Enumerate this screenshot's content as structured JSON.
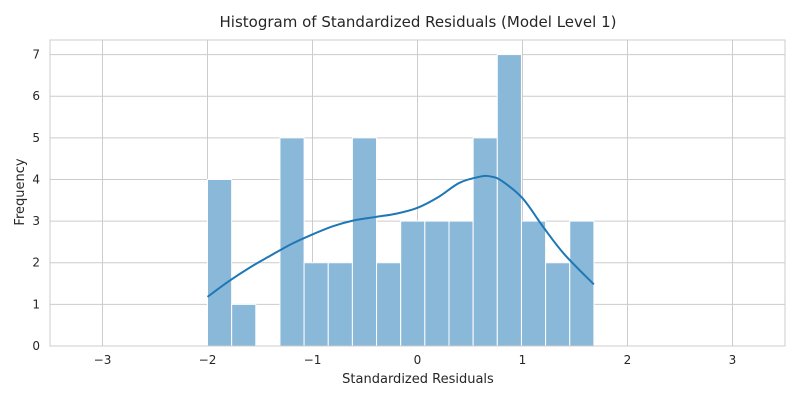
{
  "chart_data": {
    "type": "bar",
    "title": "Histogram of Standardized Residuals (Model Level 1)",
    "xlabel": "Standardized Residuals",
    "ylabel": "Frequency",
    "xlim": [
      -3.5,
      3.5
    ],
    "ylim": [
      0,
      7.35
    ],
    "xticks": [
      -3,
      -2,
      -1,
      0,
      1,
      2,
      3
    ],
    "xtick_labels": [
      "−3",
      "−2",
      "−1",
      "0",
      "1",
      "2",
      "3"
    ],
    "yticks": [
      0,
      1,
      2,
      3,
      4,
      5,
      6,
      7
    ],
    "ytick_labels": [
      "0",
      "1",
      "2",
      "3",
      "4",
      "5",
      "6",
      "7"
    ],
    "grid": true,
    "bins": [
      {
        "x0": -2.0,
        "x1": -1.77,
        "count": 4
      },
      {
        "x0": -1.77,
        "x1": -1.54,
        "count": 1
      },
      {
        "x0": -1.54,
        "x1": -1.31,
        "count": 0
      },
      {
        "x0": -1.31,
        "x1": -1.08,
        "count": 5
      },
      {
        "x0": -1.08,
        "x1": -0.85,
        "count": 2
      },
      {
        "x0": -0.85,
        "x1": -0.62,
        "count": 2
      },
      {
        "x0": -0.62,
        "x1": -0.39,
        "count": 5
      },
      {
        "x0": -0.39,
        "x1": -0.16,
        "count": 2
      },
      {
        "x0": -0.16,
        "x1": 0.07,
        "count": 3
      },
      {
        "x0": 0.07,
        "x1": 0.3,
        "count": 3
      },
      {
        "x0": 0.3,
        "x1": 0.53,
        "count": 3
      },
      {
        "x0": 0.53,
        "x1": 0.76,
        "count": 5
      },
      {
        "x0": 0.76,
        "x1": 0.99,
        "count": 7
      },
      {
        "x0": 0.99,
        "x1": 1.22,
        "count": 3
      },
      {
        "x0": 1.22,
        "x1": 1.45,
        "count": 2
      },
      {
        "x0": 1.45,
        "x1": 1.68,
        "count": 3
      }
    ],
    "kde": {
      "x": [
        -2.0,
        -1.8,
        -1.6,
        -1.4,
        -1.2,
        -1.0,
        -0.8,
        -0.6,
        -0.4,
        -0.2,
        0.0,
        0.2,
        0.4,
        0.6,
        0.7,
        0.8,
        1.0,
        1.2,
        1.4,
        1.68
      ],
      "y": [
        1.18,
        1.55,
        1.88,
        2.17,
        2.45,
        2.68,
        2.88,
        3.02,
        3.1,
        3.18,
        3.32,
        3.58,
        3.92,
        4.07,
        4.07,
        3.97,
        3.55,
        2.85,
        2.2,
        1.48
      ]
    },
    "colors": {
      "bar": "#8ab8d9",
      "kde": "#1f77b4",
      "grid": "#cccccc"
    }
  }
}
